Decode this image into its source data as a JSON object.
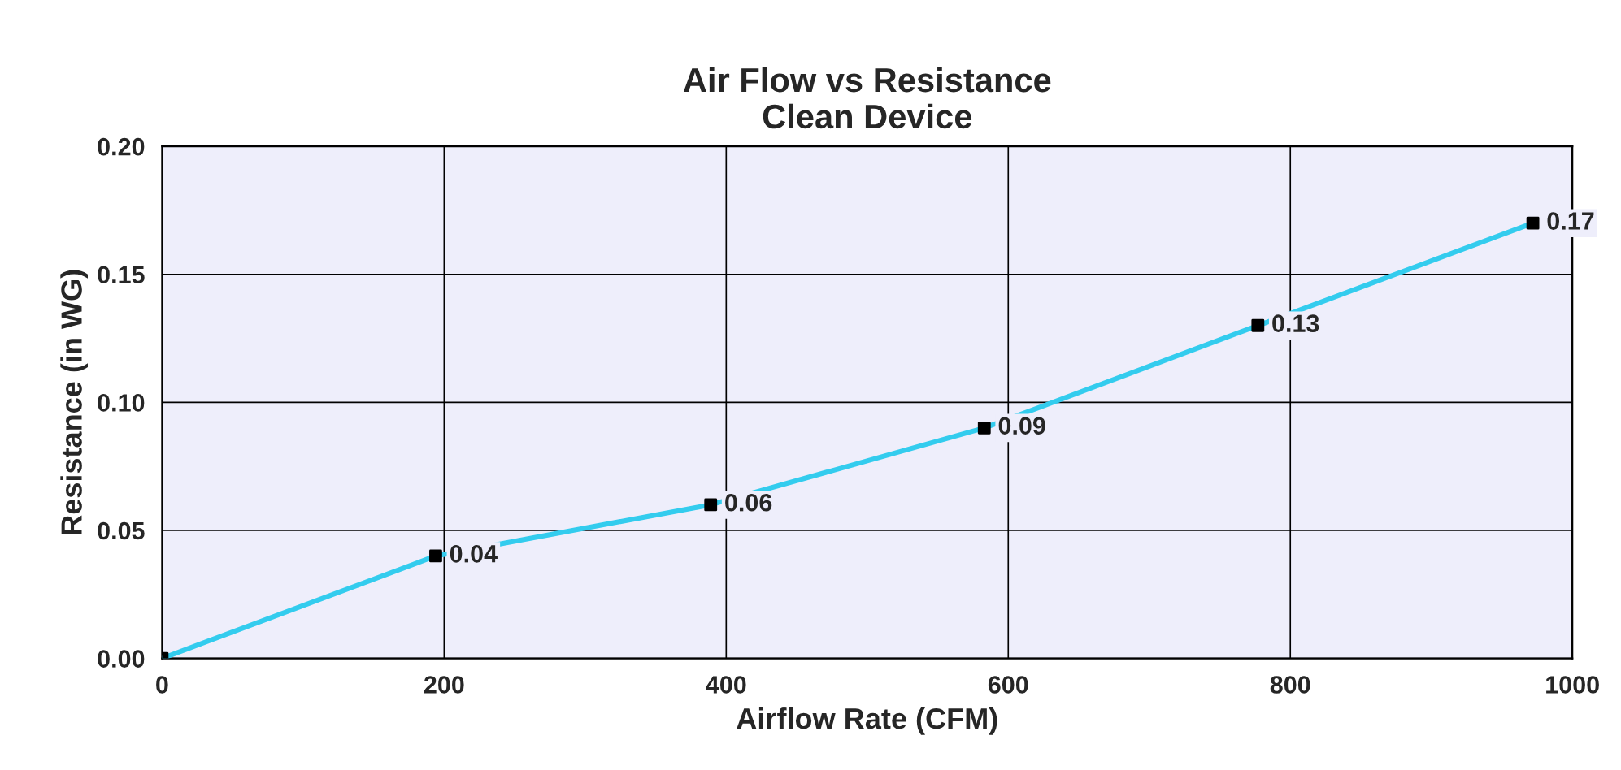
{
  "chart_data": {
    "type": "line",
    "title": "Air Flow vs Resistance\nClean Device",
    "xlabel": "Airflow Rate (CFM)",
    "ylabel": "Resistance (in WG)",
    "x": [
      0,
      194,
      389,
      583,
      777,
      972
    ],
    "series": [
      {
        "color": "#33ccee",
        "values": [
          0,
          0.04,
          0.06,
          0.09,
          0.13,
          0.17
        ],
        "value_labels": [
          null,
          "0.04",
          "0.06",
          "0.09",
          "0.13",
          "0.17"
        ]
      }
    ],
    "xlim": [
      0,
      1000
    ],
    "xticks": [
      0,
      200,
      400,
      600,
      800,
      1000
    ],
    "ylim": [
      0,
      0.2
    ],
    "yticks": [
      {
        "value": 0,
        "label": "0.00"
      },
      {
        "value": 0.05,
        "label": "0.05"
      },
      {
        "value": 0.1,
        "label": "0.10"
      },
      {
        "value": 0.15,
        "label": "0.15"
      },
      {
        "value": 0.2,
        "label": "0.20"
      }
    ],
    "grid": true,
    "marker": "square",
    "line_style": "solid"
  }
}
